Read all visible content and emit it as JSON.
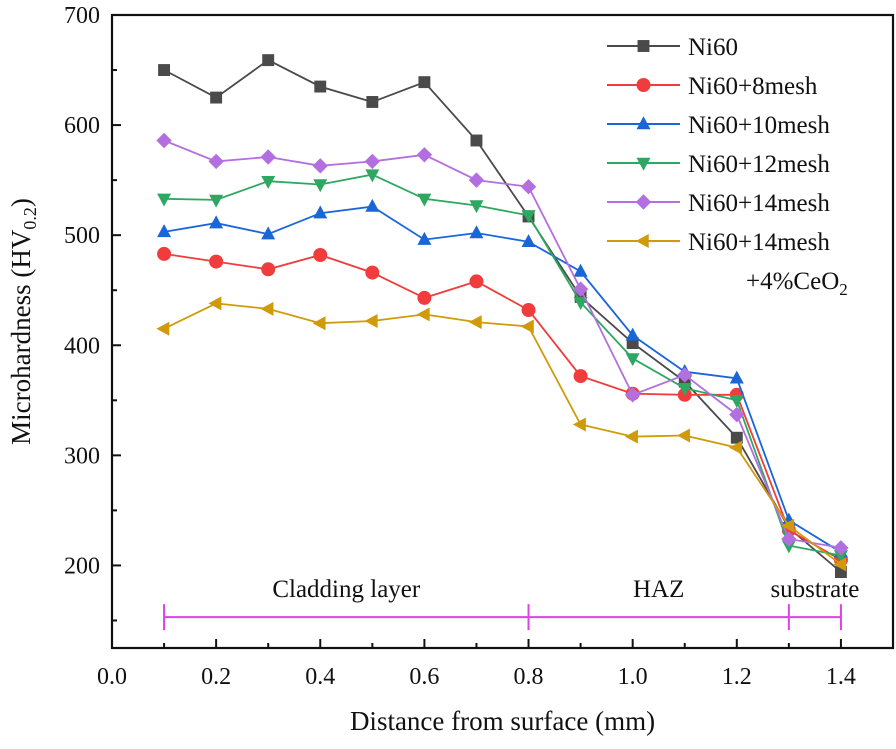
{
  "chart_data": {
    "type": "line",
    "title": "",
    "xlabel": "Distance from surface (mm)",
    "ylabel": "Microhardness (HV",
    "ylabel_sub": "0.2",
    "ylabel_close": ")",
    "xlim": [
      0.0,
      1.5
    ],
    "ylim": [
      125,
      700
    ],
    "xticks": [
      0.0,
      0.2,
      0.4,
      0.6,
      0.8,
      1.0,
      1.2,
      1.4
    ],
    "xtick_labels": [
      "0.0",
      "0.2",
      "0.4",
      "0.6",
      "0.8",
      "1.0",
      "1.2",
      "1.4"
    ],
    "xminor": [
      0.1,
      0.3,
      0.5,
      0.7,
      0.9,
      1.1,
      1.3
    ],
    "yticks": [
      200,
      300,
      400,
      500,
      600,
      700
    ],
    "ytick_labels": [
      "200",
      "300",
      "400",
      "500",
      "600",
      "700"
    ],
    "yminor": [
      150,
      250,
      350,
      450,
      550,
      650
    ],
    "grid": false,
    "legend_position": "top-right",
    "x": [
      0.1,
      0.2,
      0.3,
      0.4,
      0.5,
      0.6,
      0.7,
      0.8,
      0.9,
      1.0,
      1.1,
      1.2,
      1.3,
      1.4
    ],
    "series": [
      {
        "name": "Ni60",
        "color": "#4a4a4a",
        "marker": "square",
        "values": [
          650,
          625,
          659,
          635,
          621,
          639,
          586,
          517,
          444,
          402,
          367,
          316,
          234,
          194
        ]
      },
      {
        "name": "Ni60+8mesh",
        "color": "#f03c3c",
        "marker": "circle",
        "values": [
          483,
          476,
          469,
          482,
          466,
          443,
          458,
          432,
          372,
          356,
          355,
          355,
          232,
          205
        ]
      },
      {
        "name": "Ni60+10mesh",
        "color": "#1a66d9",
        "marker": "triangle-up",
        "values": [
          503,
          511,
          501,
          520,
          526,
          496,
          502,
          494,
          467,
          409,
          376,
          370,
          241,
          212
        ]
      },
      {
        "name": "Ni60+12mesh",
        "color": "#2ea860",
        "marker": "triangle-down",
        "values": [
          533,
          532,
          549,
          546,
          555,
          533,
          527,
          518,
          439,
          388,
          361,
          350,
          218,
          209
        ]
      },
      {
        "name": "Ni60+14mesh",
        "color": "#b36fe0",
        "marker": "diamond",
        "values": [
          586,
          567,
          571,
          563,
          567,
          573,
          550,
          544,
          451,
          355,
          373,
          337,
          224,
          216
        ]
      },
      {
        "name": "Ni60+14mesh",
        "name_line2": "+4%CeO",
        "name_line2_sub": "2",
        "color": "#d19a0a",
        "marker": "triangle-left",
        "values": [
          415,
          438,
          433,
          420,
          422,
          428,
          421,
          417,
          328,
          317,
          318,
          307,
          236,
          201
        ]
      }
    ],
    "annotations": {
      "color": "#e040e8",
      "y_level": 153,
      "bracket_x": [
        0.1,
        0.8,
        1.3,
        1.4
      ],
      "regions": [
        {
          "label": "Cladding layer",
          "x_center": 0.45
        },
        {
          "label": "HAZ",
          "x_center": 1.05
        },
        {
          "label": "substrate",
          "x_center": 1.4
        }
      ]
    }
  }
}
